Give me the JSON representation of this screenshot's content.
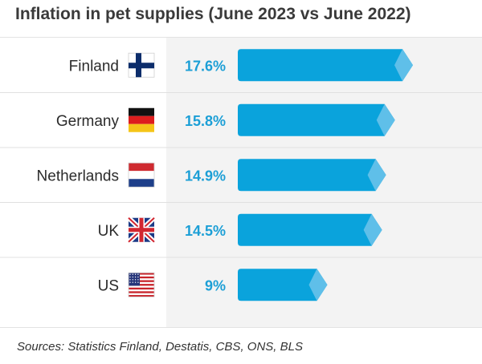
{
  "title": "Inflation in pet supplies (June 2023 vs June 2022)",
  "source": "Sources: Statistics Finland, Destatis, CBS, ONS, BLS",
  "colors": {
    "bar": "#0aa3dc",
    "bar_tip": "#5fbfe9",
    "value_text": "#1c9fd6",
    "panel": "#f3f3f3",
    "row_rule": "#e0e0e0"
  },
  "chart_data": {
    "type": "bar",
    "orientation": "horizontal",
    "title": "Inflation in pet supplies (June 2023 vs June 2022)",
    "categories": [
      "Finland",
      "Germany",
      "Netherlands",
      "UK",
      "US"
    ],
    "flags": [
      "finland-flag-icon",
      "germany-flag-icon",
      "netherlands-flag-icon",
      "uk-flag-icon",
      "us-flag-icon"
    ],
    "values": [
      17.6,
      15.8,
      14.9,
      14.5,
      9
    ],
    "value_labels": [
      "17.6%",
      "15.8%",
      "14.9%",
      "14.5%",
      "9%"
    ],
    "unit": "%",
    "xlim": [
      0,
      17.6
    ],
    "grid": false,
    "legend": "none"
  }
}
